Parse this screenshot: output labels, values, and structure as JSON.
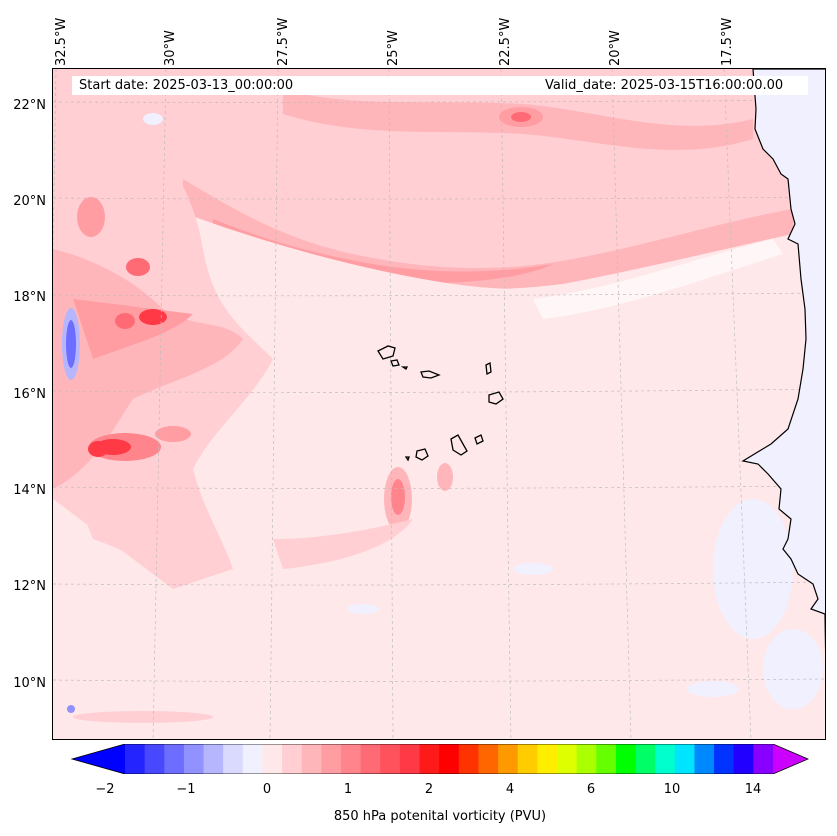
{
  "header": {
    "start_date": "Start date: 2025-03-13_00:00:00",
    "valid_date": "Valid_date: 2025-03-15T16:00:00.00"
  },
  "axes": {
    "longitude_labels": [
      "32.5°W",
      "30°W",
      "27.5°W",
      "25°W",
      "22.5°W",
      "20°W",
      "17.5°W"
    ],
    "latitude_labels": [
      "22°N",
      "20°N",
      "18°N",
      "16°N",
      "14°N",
      "12°N",
      "10°N"
    ]
  },
  "colorbar": {
    "title": "850 hPa potenital vorticity (PVU)",
    "tick_labels": [
      "−2",
      "−1",
      "0",
      "1",
      "2",
      "4",
      "6",
      "10",
      "14"
    ],
    "colors": [
      "#0000ff",
      "#2424ff",
      "#4848ff",
      "#6d6dff",
      "#9191ff",
      "#b6b6ff",
      "#dadaff",
      "#f0f0ff",
      "#ffe8ea",
      "#ffcfd3",
      "#ffb6bb",
      "#ff9da3",
      "#ff848c",
      "#ff6b74",
      "#ff525d",
      "#ff3945",
      "#ff1a1a",
      "#ff0000",
      "#ff3300",
      "#ff6600",
      "#ff9900",
      "#ffcc00",
      "#ffee00",
      "#ddff00",
      "#aaff00",
      "#66ff00",
      "#00ff00",
      "#00ff66",
      "#00ffcc",
      "#00e5ff",
      "#0088ff",
      "#0033ff",
      "#2200ff",
      "#8800ff",
      "#cc00ff"
    ]
  },
  "map": {
    "background_color": "#ffe8ea",
    "land_color": "#f0f0ff",
    "coastline_color": "#000000"
  }
}
